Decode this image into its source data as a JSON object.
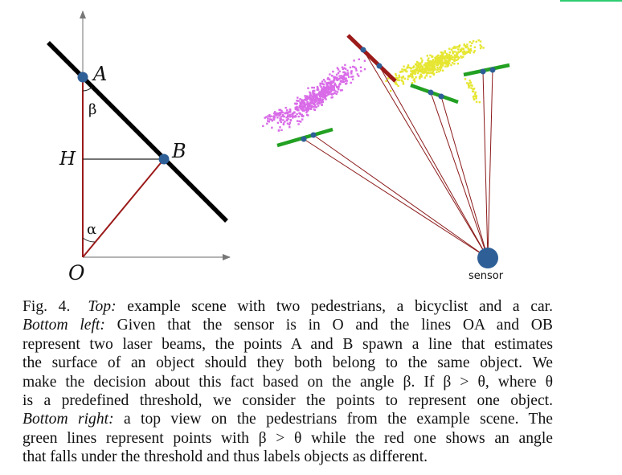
{
  "diagram_left": {
    "point_A": "A",
    "point_B": "B",
    "point_H": "H",
    "point_O": "O",
    "angle_beta": "β",
    "angle_alpha": "α"
  },
  "diagram_right": {
    "sensor_label": "sensor",
    "colors": {
      "pedestrian_1": "#d96be8",
      "pedestrian_2": "#e6e632",
      "same_object_line": "#22a022",
      "different_object_line": "#9b1a1a",
      "beam": "#8b1a1a",
      "point": "#2e5f97"
    }
  },
  "caption": {
    "fig_number": "Fig. 4.",
    "top_label": "Top:",
    "top_text": " example scene with two pedestrians, a bicyclist and a car.",
    "bottom_left_label": "Bottom left:",
    "line2_text": " Given that the sensor is in O and the lines OA and OB",
    "line3": "represent two laser beams, the points A and B spawn a line that estimates",
    "line4": "the surface of an object should they both belong to the same object. We",
    "line5": "make the decision about this fact based on the angle β. If β > θ, where θ",
    "line6": "is a predefined threshold, we consider the points to represent one object.",
    "bottom_right_label": "Bottom right:",
    "line7_text": " a top view on the pedestrians from the example scene. The",
    "line8": "green lines represent points with β > θ while the red one shows an angle",
    "line9": "that falls under the threshold and thus labels objects as different."
  }
}
